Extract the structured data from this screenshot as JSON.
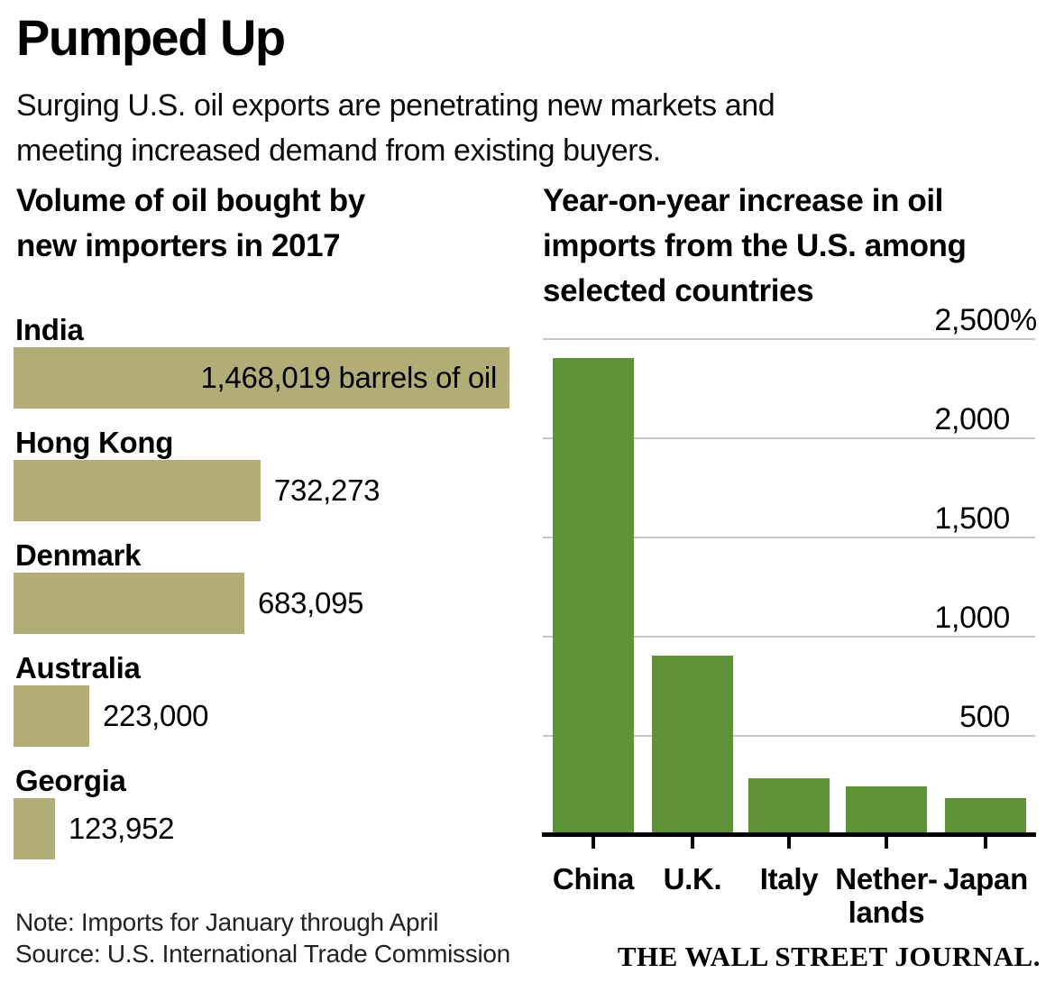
{
  "header": {
    "title": "Pumped Up",
    "subtitle_lines": [
      "Surging U.S. oil exports are penetrating new markets and",
      "meeting increased demand from existing buyers."
    ]
  },
  "left_chart": {
    "title_lines": [
      "Volume of oil bought by",
      "new importers in 2017"
    ]
  },
  "right_chart": {
    "title_lines": [
      "Year-on-year increase in oil",
      "imports from the U.S. among",
      "selected countries"
    ],
    "yticks_display": [
      {
        "num": "2,500",
        "suffix": "%"
      },
      {
        "num": "2,000",
        "suffix": ""
      },
      {
        "num": "1,500",
        "suffix": ""
      },
      {
        "num": "1,000",
        "suffix": ""
      },
      {
        "num": "500",
        "suffix": ""
      }
    ],
    "xlabels": [
      {
        "lines": [
          "China"
        ]
      },
      {
        "lines": [
          "U.K."
        ]
      },
      {
        "lines": [
          "Italy"
        ]
      },
      {
        "lines": [
          "Nether-",
          "lands"
        ]
      },
      {
        "lines": [
          "Japan"
        ]
      }
    ]
  },
  "footer": {
    "note": "Note: Imports for January through April",
    "source": "Source: U.S. International Trade Commission",
    "brand": "THE WALL STREET JOURNAL."
  },
  "colors": {
    "left_bar": "#b2ac77",
    "right_bar": "#5f9338",
    "gridline": "#c6c6c6",
    "axis": "#000000"
  },
  "chart_data": [
    {
      "type": "bar",
      "orientation": "horizontal",
      "title": "Volume of oil bought by new importers in 2017",
      "categories": [
        "India",
        "Hong Kong",
        "Denmark",
        "Australia",
        "Georgia"
      ],
      "values": [
        1468019,
        732273,
        683095,
        223000,
        123952
      ],
      "unit": "barrels of oil",
      "data_labels": [
        "1,468,019 barrels of oil",
        "732,273",
        "683,095",
        "223,000",
        "123,952"
      ],
      "xlim": [
        0,
        1468019
      ],
      "grid": false,
      "note": "Imports for January through April",
      "source": "U.S. International Trade Commission"
    },
    {
      "type": "bar",
      "orientation": "vertical",
      "title": "Year-on-year increase in oil imports from the U.S. among selected countries",
      "categories": [
        "China",
        "U.K.",
        "Italy",
        "Netherlands",
        "Japan"
      ],
      "values": [
        2400,
        900,
        280,
        240,
        180
      ],
      "values_estimated_from_pixels": true,
      "unit": "%",
      "ylim": [
        0,
        2500
      ],
      "yticks": [
        500,
        1000,
        1500,
        2000,
        2500
      ],
      "grid": true,
      "legend": false
    }
  ]
}
